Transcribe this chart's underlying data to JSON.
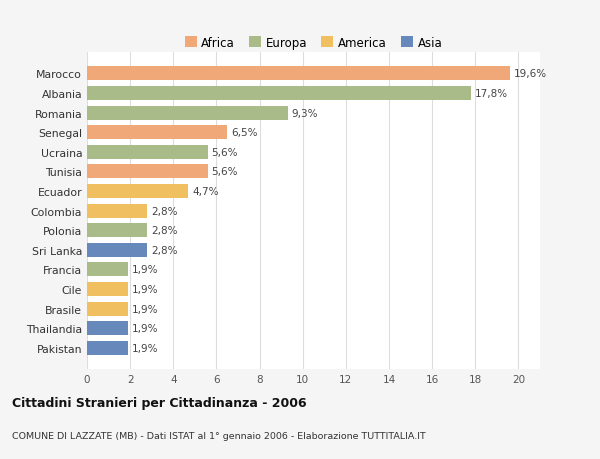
{
  "countries": [
    "Pakistan",
    "Thailandia",
    "Brasile",
    "Cile",
    "Francia",
    "Sri Lanka",
    "Polonia",
    "Colombia",
    "Ecuador",
    "Tunisia",
    "Ucraina",
    "Senegal",
    "Romania",
    "Albania",
    "Marocco"
  ],
  "values": [
    1.9,
    1.9,
    1.9,
    1.9,
    1.9,
    2.8,
    2.8,
    2.8,
    4.7,
    5.6,
    5.6,
    6.5,
    9.3,
    17.8,
    19.6
  ],
  "labels": [
    "1,9%",
    "1,9%",
    "1,9%",
    "1,9%",
    "1,9%",
    "2,8%",
    "2,8%",
    "2,8%",
    "4,7%",
    "5,6%",
    "5,6%",
    "6,5%",
    "9,3%",
    "17,8%",
    "19,6%"
  ],
  "colors": [
    "#6688bb",
    "#6688bb",
    "#f0c060",
    "#f0c060",
    "#a8bb88",
    "#6688bb",
    "#a8bb88",
    "#f0c060",
    "#f0c060",
    "#f0a878",
    "#a8bb88",
    "#f0a878",
    "#a8bb88",
    "#a8bb88",
    "#f0a878"
  ],
  "continent_colors": {
    "Africa": "#f0a878",
    "Europa": "#a8bb88",
    "America": "#f0c060",
    "Asia": "#6688bb"
  },
  "title": "Cittadini Stranieri per Cittadinanza - 2006",
  "subtitle": "COMUNE DI LAZZATE (MB) - Dati ISTAT al 1° gennaio 2006 - Elaborazione TUTTITALIA.IT",
  "xlim": [
    0,
    21
  ],
  "xticks": [
    0,
    2,
    4,
    6,
    8,
    10,
    12,
    14,
    16,
    18,
    20
  ],
  "background_color": "#f5f5f5",
  "bar_background": "#ffffff",
  "grid_color": "#dddddd"
}
